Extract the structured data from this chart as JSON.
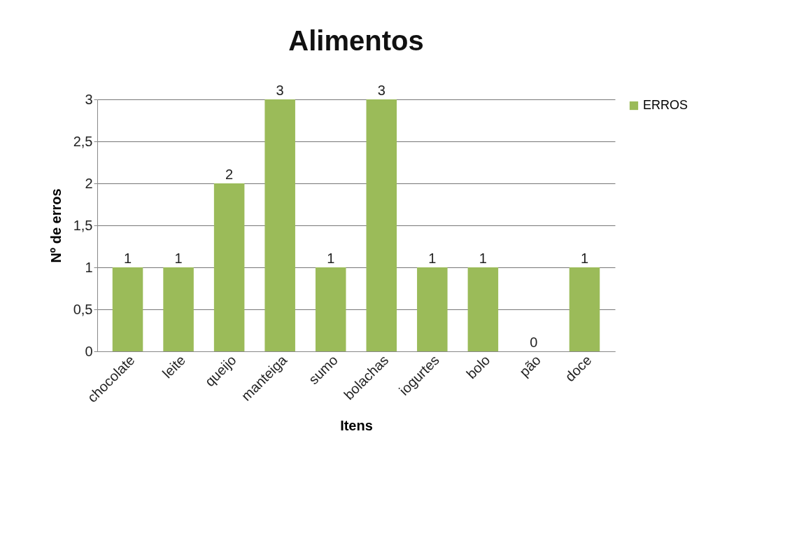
{
  "chart_data": {
    "type": "bar",
    "title": "Alimentos",
    "xlabel": "Itens",
    "ylabel": "Nº de erros",
    "categories": [
      "chocolate",
      "leite",
      "queijo",
      "manteiga",
      "sumo",
      "bolachas",
      "iogurtes",
      "bolo",
      "pão",
      "doce"
    ],
    "series": [
      {
        "name": "ERROS",
        "color": "#9bbb59",
        "values": [
          1,
          1,
          2,
          3,
          1,
          3,
          1,
          1,
          0,
          1
        ]
      }
    ],
    "ylim": [
      0,
      3
    ],
    "yticks": [
      0,
      {
        "value": 0.5,
        "label": "0,5"
      },
      1,
      {
        "value": 1.5,
        "label": "1,5"
      },
      2,
      {
        "value": 2.5,
        "label": "2,5"
      },
      3
    ],
    "grid": "y",
    "legend": "right",
    "data_labels": true
  }
}
